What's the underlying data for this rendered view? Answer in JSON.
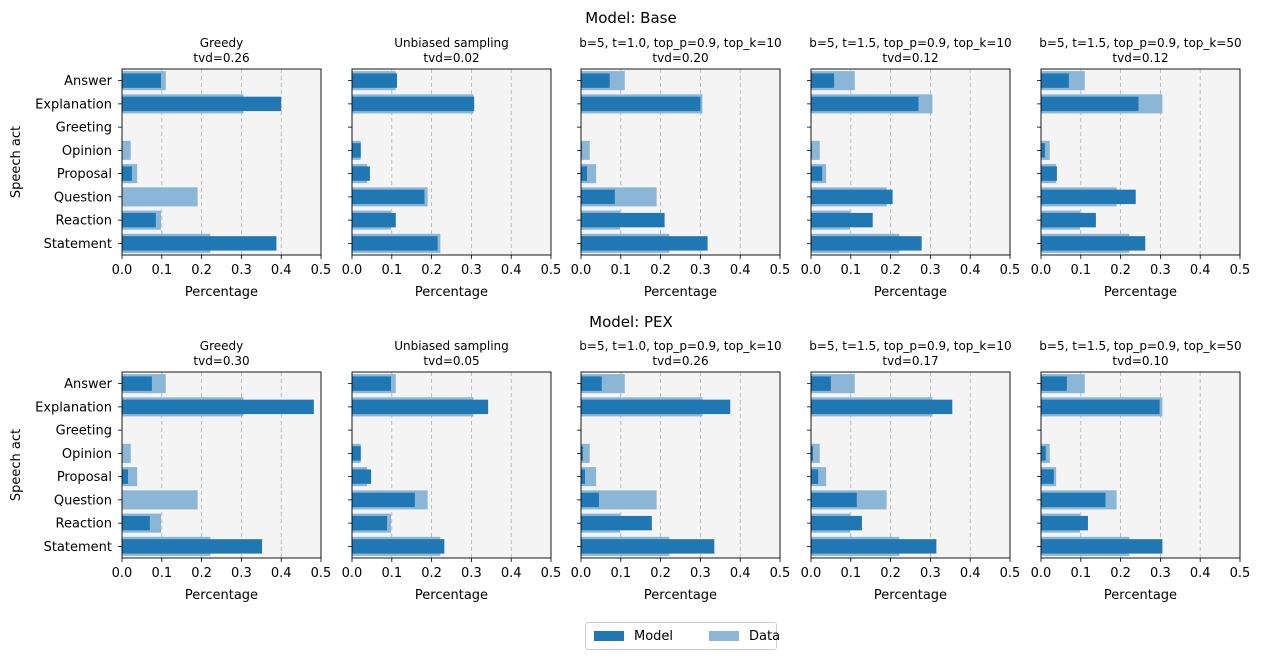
{
  "figure": {
    "colors": {
      "model": "#1f77b4",
      "data": "#8cb6d6",
      "panel_bg": "#f4f4f4",
      "grid": "#b0b0b0"
    },
    "legend": {
      "model_label": "Model",
      "data_label": "Data",
      "placement": "bottom-center"
    }
  },
  "chart_data": [
    {
      "type": "bar",
      "orientation": "horizontal",
      "suptitle": "Model: Base",
      "title": "Greedy",
      "subtitle": "tvd=0.26",
      "xlabel": "Percentage",
      "ylabel": "Speech act",
      "xlim": [
        0,
        0.5
      ],
      "xticks": [
        "0.0",
        "0.1",
        "0.2",
        "0.3",
        "0.4",
        "0.5"
      ],
      "grid": "vertical dashed",
      "categories": [
        "Answer",
        "Explanation",
        "Greeting",
        "Opinion",
        "Proposal",
        "Question",
        "Reaction",
        "Statement"
      ],
      "series": [
        {
          "name": "Data",
          "values": [
            0.11,
            0.305,
            0.0,
            0.022,
            0.038,
            0.19,
            0.098,
            0.222
          ]
        },
        {
          "name": "Model",
          "values": [
            0.098,
            0.4,
            0.0,
            0.0,
            0.025,
            0.0,
            0.085,
            0.388
          ]
        }
      ]
    },
    {
      "type": "bar",
      "orientation": "horizontal",
      "title": "Unbiased sampling",
      "subtitle": "tvd=0.02",
      "xlabel": "Percentage",
      "xlim": [
        0,
        0.5
      ],
      "xticks": [
        "0.0",
        "0.1",
        "0.2",
        "0.3",
        "0.4",
        "0.5"
      ],
      "categories": [
        "Answer",
        "Explanation",
        "Greeting",
        "Opinion",
        "Proposal",
        "Question",
        "Reaction",
        "Statement"
      ],
      "series": [
        {
          "name": "Data",
          "values": [
            0.11,
            0.305,
            0.0,
            0.022,
            0.038,
            0.19,
            0.098,
            0.222
          ]
        },
        {
          "name": "Model",
          "values": [
            0.113,
            0.307,
            0.0,
            0.022,
            0.045,
            0.182,
            0.11,
            0.215
          ]
        }
      ]
    },
    {
      "type": "bar",
      "orientation": "horizontal",
      "title": "b=5, t=1.0, top_p=0.9, top_k=10",
      "subtitle": "tvd=0.20",
      "xlabel": "Percentage",
      "xlim": [
        0,
        0.5
      ],
      "xticks": [
        "0.0",
        "0.1",
        "0.2",
        "0.3",
        "0.4",
        "0.5"
      ],
      "categories": [
        "Answer",
        "Explanation",
        "Greeting",
        "Opinion",
        "Proposal",
        "Question",
        "Reaction",
        "Statement"
      ],
      "series": [
        {
          "name": "Data",
          "values": [
            0.11,
            0.305,
            0.0,
            0.022,
            0.038,
            0.19,
            0.098,
            0.222
          ]
        },
        {
          "name": "Model",
          "values": [
            0.072,
            0.3,
            0.0,
            0.002,
            0.015,
            0.085,
            0.21,
            0.318
          ]
        }
      ]
    },
    {
      "type": "bar",
      "orientation": "horizontal",
      "title": "b=5, t=1.5, top_p=0.9, top_k=10",
      "subtitle": "tvd=0.12",
      "xlabel": "Percentage",
      "xlim": [
        0,
        0.5
      ],
      "xticks": [
        "0.0",
        "0.1",
        "0.2",
        "0.3",
        "0.4",
        "0.5"
      ],
      "categories": [
        "Answer",
        "Explanation",
        "Greeting",
        "Opinion",
        "Proposal",
        "Question",
        "Reaction",
        "Statement"
      ],
      "series": [
        {
          "name": "Data",
          "values": [
            0.11,
            0.305,
            0.0,
            0.022,
            0.038,
            0.19,
            0.098,
            0.222
          ]
        },
        {
          "name": "Model",
          "values": [
            0.058,
            0.27,
            0.0,
            0.002,
            0.028,
            0.205,
            0.155,
            0.278
          ]
        }
      ]
    },
    {
      "type": "bar",
      "orientation": "horizontal",
      "title": "b=5, t=1.5, top_p=0.9, top_k=50",
      "subtitle": "tvd=0.12",
      "xlabel": "Percentage",
      "xlim": [
        0,
        0.5
      ],
      "xticks": [
        "0.0",
        "0.1",
        "0.2",
        "0.3",
        "0.4",
        "0.5"
      ],
      "categories": [
        "Answer",
        "Explanation",
        "Greeting",
        "Opinion",
        "Proposal",
        "Question",
        "Reaction",
        "Statement"
      ],
      "series": [
        {
          "name": "Data",
          "values": [
            0.11,
            0.305,
            0.0,
            0.022,
            0.038,
            0.19,
            0.098,
            0.222
          ]
        },
        {
          "name": "Model",
          "values": [
            0.07,
            0.245,
            0.0,
            0.01,
            0.04,
            0.238,
            0.138,
            0.262
          ]
        }
      ]
    },
    {
      "type": "bar",
      "orientation": "horizontal",
      "suptitle": "Model: PEX",
      "title": "Greedy",
      "subtitle": "tvd=0.30",
      "xlabel": "Percentage",
      "ylabel": "Speech act",
      "xlim": [
        0,
        0.5
      ],
      "xticks": [
        "0.0",
        "0.1",
        "0.2",
        "0.3",
        "0.4",
        "0.5"
      ],
      "categories": [
        "Answer",
        "Explanation",
        "Greeting",
        "Opinion",
        "Proposal",
        "Question",
        "Reaction",
        "Statement"
      ],
      "series": [
        {
          "name": "Data",
          "values": [
            0.11,
            0.305,
            0.0,
            0.022,
            0.038,
            0.19,
            0.098,
            0.222
          ]
        },
        {
          "name": "Model",
          "values": [
            0.075,
            0.482,
            0.0,
            0.0,
            0.015,
            0.0,
            0.07,
            0.352
          ]
        }
      ]
    },
    {
      "type": "bar",
      "orientation": "horizontal",
      "title": "Unbiased sampling",
      "subtitle": "tvd=0.05",
      "xlabel": "Percentage",
      "xlim": [
        0,
        0.5
      ],
      "xticks": [
        "0.0",
        "0.1",
        "0.2",
        "0.3",
        "0.4",
        "0.5"
      ],
      "categories": [
        "Answer",
        "Explanation",
        "Greeting",
        "Opinion",
        "Proposal",
        "Question",
        "Reaction",
        "Statement"
      ],
      "series": [
        {
          "name": "Data",
          "values": [
            0.11,
            0.305,
            0.0,
            0.022,
            0.038,
            0.19,
            0.098,
            0.222
          ]
        },
        {
          "name": "Model",
          "values": [
            0.098,
            0.342,
            0.0,
            0.022,
            0.048,
            0.158,
            0.088,
            0.232
          ]
        }
      ]
    },
    {
      "type": "bar",
      "orientation": "horizontal",
      "title": "b=5, t=1.0, top_p=0.9, top_k=10",
      "subtitle": "tvd=0.26",
      "xlabel": "Percentage",
      "xlim": [
        0,
        0.5
      ],
      "xticks": [
        "0.0",
        "0.1",
        "0.2",
        "0.3",
        "0.4",
        "0.5"
      ],
      "categories": [
        "Answer",
        "Explanation",
        "Greeting",
        "Opinion",
        "Proposal",
        "Question",
        "Reaction",
        "Statement"
      ],
      "series": [
        {
          "name": "Data",
          "values": [
            0.11,
            0.305,
            0.0,
            0.022,
            0.038,
            0.19,
            0.098,
            0.222
          ]
        },
        {
          "name": "Model",
          "values": [
            0.052,
            0.375,
            0.0,
            0.005,
            0.01,
            0.045,
            0.178,
            0.335
          ]
        }
      ]
    },
    {
      "type": "bar",
      "orientation": "horizontal",
      "title": "b=5, t=1.5, top_p=0.9, top_k=10",
      "subtitle": "tvd=0.17",
      "xlabel": "Percentage",
      "xlim": [
        0,
        0.5
      ],
      "xticks": [
        "0.0",
        "0.1",
        "0.2",
        "0.3",
        "0.4",
        "0.5"
      ],
      "categories": [
        "Answer",
        "Explanation",
        "Greeting",
        "Opinion",
        "Proposal",
        "Question",
        "Reaction",
        "Statement"
      ],
      "series": [
        {
          "name": "Data",
          "values": [
            0.11,
            0.305,
            0.0,
            0.022,
            0.038,
            0.19,
            0.098,
            0.222
          ]
        },
        {
          "name": "Model",
          "values": [
            0.05,
            0.355,
            0.0,
            0.005,
            0.018,
            0.115,
            0.128,
            0.315
          ]
        }
      ]
    },
    {
      "type": "bar",
      "orientation": "horizontal",
      "title": "b=5, t=1.5, top_p=0.9, top_k=50",
      "subtitle": "tvd=0.10",
      "xlabel": "Percentage",
      "xlim": [
        0,
        0.5
      ],
      "xticks": [
        "0.0",
        "0.1",
        "0.2",
        "0.3",
        "0.4",
        "0.5"
      ],
      "categories": [
        "Answer",
        "Explanation",
        "Greeting",
        "Opinion",
        "Proposal",
        "Question",
        "Reaction",
        "Statement"
      ],
      "series": [
        {
          "name": "Data",
          "values": [
            0.11,
            0.305,
            0.0,
            0.022,
            0.038,
            0.19,
            0.098,
            0.222
          ]
        },
        {
          "name": "Model",
          "values": [
            0.065,
            0.298,
            0.0,
            0.012,
            0.032,
            0.162,
            0.118,
            0.305
          ]
        }
      ]
    }
  ]
}
